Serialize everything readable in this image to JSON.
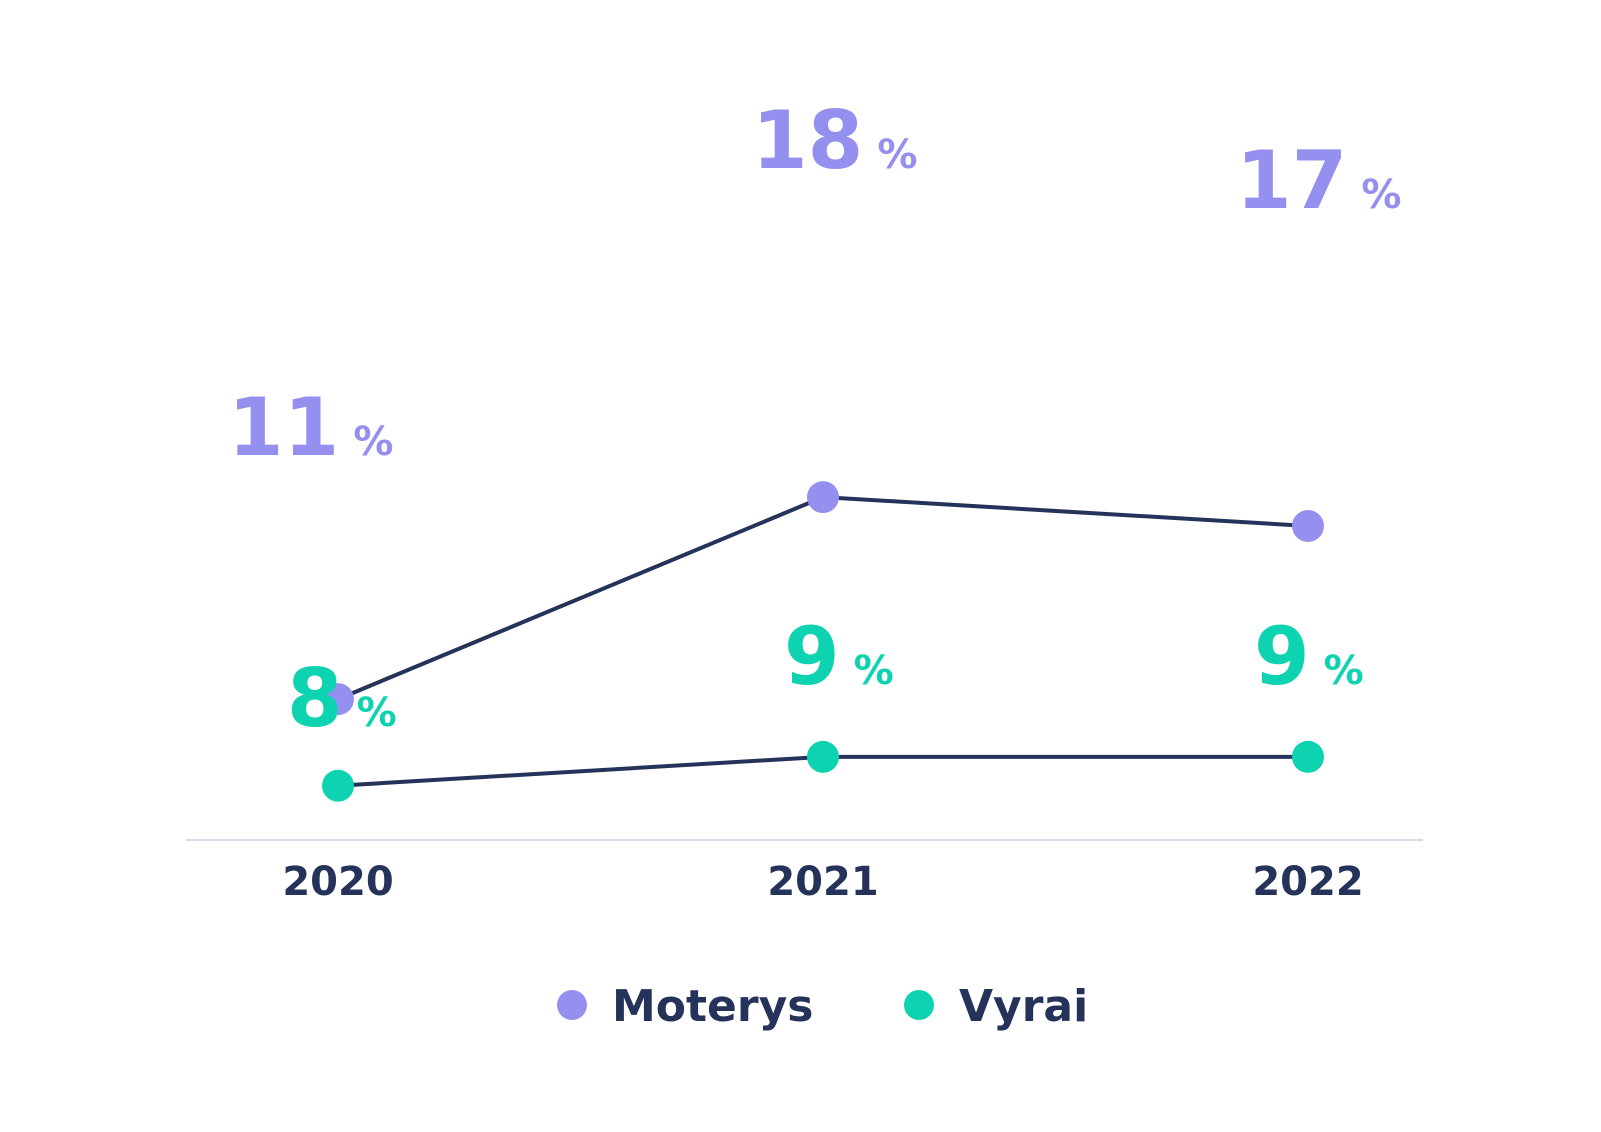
{
  "chart_data": {
    "type": "line",
    "categories": [
      "2020",
      "2021",
      "2022"
    ],
    "series": [
      {
        "name": "Moterys",
        "values": [
          11,
          18,
          17
        ],
        "labels": [
          "11",
          "18",
          "17"
        ],
        "color": "#9590f0"
      },
      {
        "name": "Vyrai",
        "values": [
          8,
          9,
          9
        ],
        "labels": [
          "8",
          "9",
          "9"
        ],
        "color": "#0dd3b1"
      }
    ],
    "unit_symbol": "%",
    "line_color": "#25325a",
    "axis_color": "#d9dbe6",
    "text_color": "#25325a",
    "ylim": [
      0,
      25
    ],
    "grid": false,
    "legend_position": "bottom-center"
  }
}
